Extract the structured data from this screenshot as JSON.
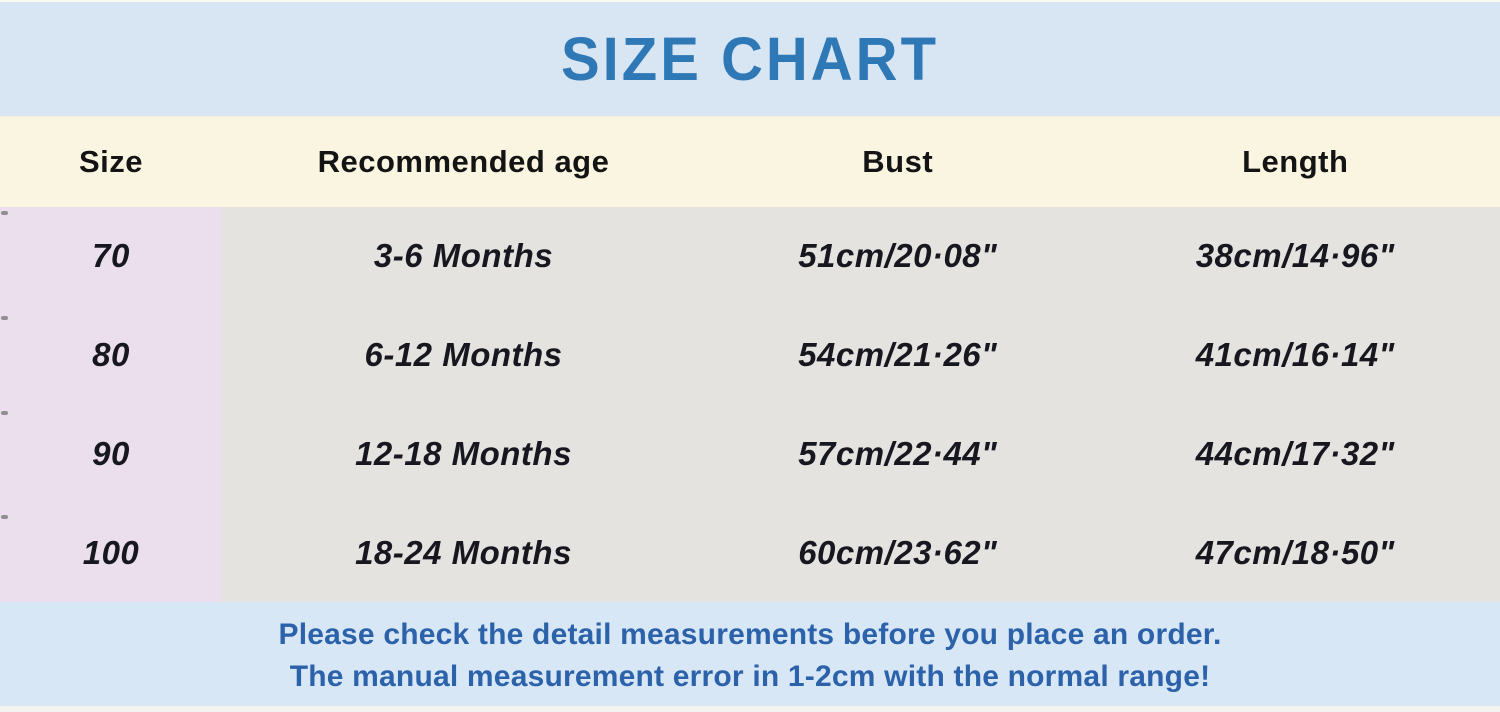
{
  "title": "SIZE CHART",
  "chart_data": {
    "type": "table",
    "title": "SIZE CHART",
    "columns": [
      "Size",
      "Recommended age",
      "Bust",
      "Length"
    ],
    "rows": [
      [
        "70",
        "3-6 Months",
        "51cm/20·08\"",
        "38cm/14·96\""
      ],
      [
        "80",
        "6-12 Months",
        "54cm/21·26\"",
        "41cm/16·14\""
      ],
      [
        "90",
        "12-18 Months",
        "57cm/22·44\"",
        "44cm/17·32\""
      ],
      [
        "100",
        "18-24 Months",
        "60cm/23·62\"",
        "47cm/18·50\""
      ]
    ]
  },
  "footer": {
    "line1": "Please check the detail measurements before you place an order.",
    "line2": "The manual measurement error in 1-2cm with the normal range!"
  },
  "colors": {
    "title_text": "#2f78b6",
    "title_band_bg": "#d8e5f3",
    "header_bg": "#faf5e1",
    "size_column_bg": "#ebdfed",
    "data_bg": "#e4e3e0",
    "footer_bg": "#d8e7f6",
    "footer_text": "#2b62a9",
    "data_text": "#17171f"
  }
}
